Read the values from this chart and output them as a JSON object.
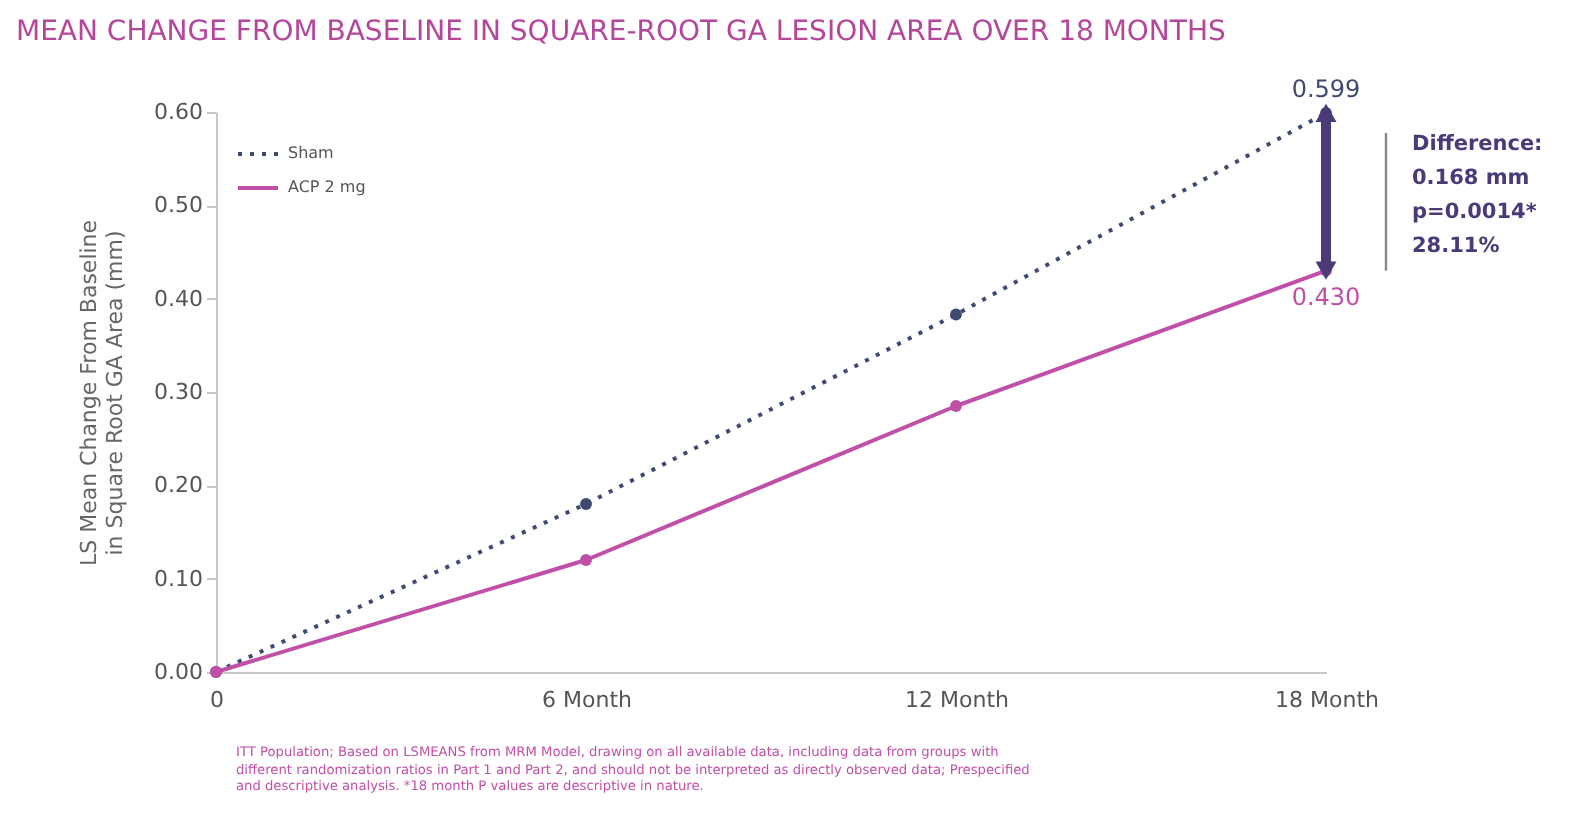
{
  "chart_data": {
    "type": "line",
    "title": "MEAN CHANGE FROM BASELINE IN SQUARE-ROOT GA LESION AREA OVER 18 MONTHS",
    "ylabel": "LS Mean Change From Baseline\nin Square Root GA Area (mm)",
    "categories": [
      "0",
      "6 Month",
      "12 Month",
      "18 Month"
    ],
    "series": [
      {
        "name": "Sham",
        "color": "#3f4a70",
        "line_style": "dotted",
        "values": [
          0,
          0.18,
          0.383,
          0.599
        ],
        "value_labels": [
          null,
          null,
          null,
          "0.599"
        ]
      },
      {
        "name": "ACP 2 mg",
        "color": "#c04fa8",
        "line_style": "solid",
        "values": [
          0,
          0.12,
          0.285,
          0.43
        ],
        "value_labels": [
          null,
          null,
          null,
          "0.430"
        ]
      }
    ],
    "ylim": [
      0,
      0.6
    ],
    "yticks": [
      {
        "value": 0,
        "label": "0.00"
      },
      {
        "value": 0.1,
        "label": "0.10"
      },
      {
        "value": 0.2,
        "label": "0.20"
      },
      {
        "value": 0.3,
        "label": "0.30"
      },
      {
        "value": 0.4,
        "label": "0.40"
      },
      {
        "value": 0.5,
        "label": "0.50"
      },
      {
        "value": 0.6,
        "label": "0.60"
      }
    ],
    "grid": false,
    "legend": "top left",
    "marker": "circle",
    "annotations": [
      "Difference:\n0.168 mm\np=0.0014*\n28.11%",
      "ITT Population; Based on LSMEANS from MRM Model, drawing on all available data, including data from groups with different randomization ratios in Part 1 and Part 2, and should not be interpreted as directly observed data; Prespecified and descriptive analysis. *18 month P values are descriptive in nature."
    ]
  }
}
